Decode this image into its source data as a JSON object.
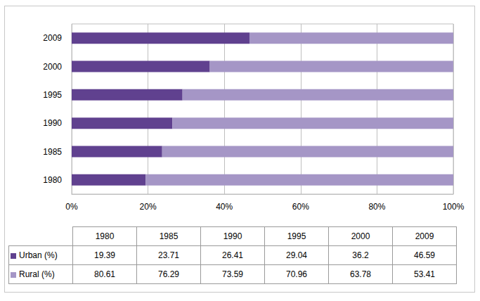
{
  "chart_data": {
    "type": "bar",
    "orientation": "horizontal",
    "stacked": true,
    "grid": true,
    "categories": [
      "1980",
      "1985",
      "1990",
      "1995",
      "2000",
      "2009"
    ],
    "series": [
      {
        "name": "Urban (%)",
        "color": "#60418f",
        "values": [
          19.39,
          23.71,
          26.41,
          29.04,
          36.2,
          46.59
        ]
      },
      {
        "name": "Rural (%)",
        "color": "#a596c6",
        "values": [
          80.61,
          76.29,
          73.59,
          70.96,
          63.78,
          53.41
        ]
      }
    ],
    "xlim": [
      0,
      100
    ],
    "xticks": [
      {
        "value": 0,
        "label": "0%"
      },
      {
        "value": 20,
        "label": "20%"
      },
      {
        "value": 40,
        "label": "40%"
      },
      {
        "value": 60,
        "label": "60%"
      },
      {
        "value": 80,
        "label": "80%"
      },
      {
        "value": 100,
        "label": "100%"
      }
    ]
  }
}
